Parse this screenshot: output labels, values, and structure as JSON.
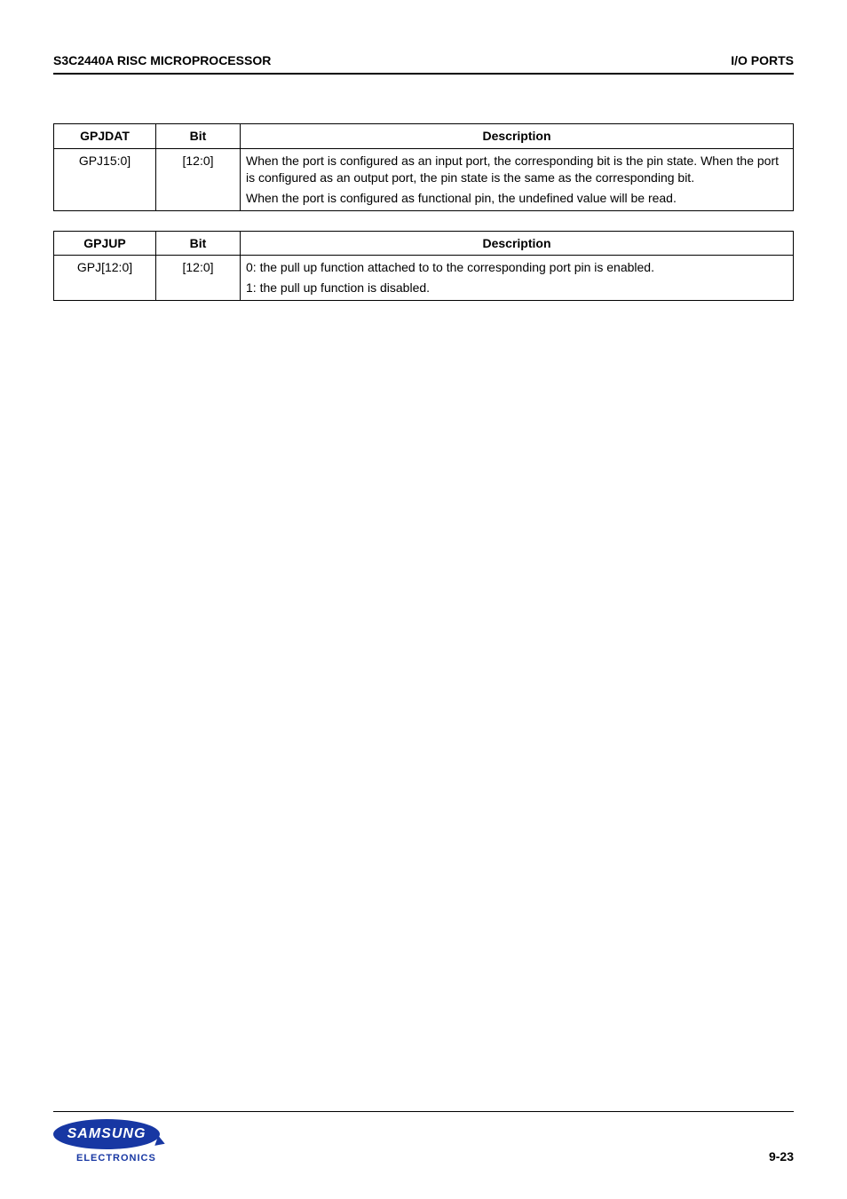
{
  "header": {
    "left": "S3C2440A RISC MICROPROCESSOR",
    "right": "I/O PORTS"
  },
  "tables": {
    "gpjdat": {
      "columns": [
        "GPJDAT",
        "Bit",
        "Description"
      ],
      "row": {
        "name": "GPJ15:0]",
        "bit": "[12:0]",
        "desc1": "When the port is configured as an input port, the corresponding bit is the pin state. When the port is configured as an output port, the pin state is the same as the corresponding bit.",
        "desc2": "When the port is configured as functional pin, the undefined value will be read."
      }
    },
    "gpjup": {
      "columns": [
        "GPJUP",
        "Bit",
        "Description"
      ],
      "row": {
        "name": "GPJ[12:0]",
        "bit": "[12:0]",
        "desc1": "0: the pull up function attached to to the corresponding port pin is enabled.",
        "desc2": "1: the pull up function is disabled."
      }
    }
  },
  "footer": {
    "logo_text": "SAMSUNG",
    "logo_sub": "ELECTRONICS",
    "page_number": "9-23"
  },
  "colors": {
    "logo_blue": "#1737a3",
    "text": "#000000",
    "background": "#ffffff"
  }
}
